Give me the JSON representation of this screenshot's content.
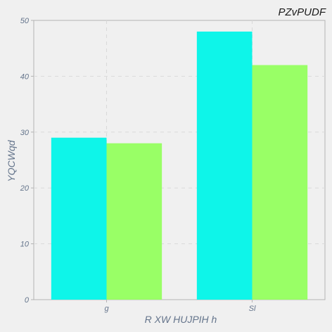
{
  "chart_data": {
    "type": "bar",
    "title": "PZvPUDF",
    "xlabel": "R XW HUJPIH h",
    "ylabel": "YQCWqd",
    "categories": [
      "g",
      "Sl"
    ],
    "series": [
      {
        "values": [
          29,
          48
        ],
        "color": "#0ef5e9"
      },
      {
        "values": [
          28,
          42
        ],
        "color": "#99ff66"
      }
    ],
    "ylim": [
      0,
      50
    ],
    "yticks": [
      0,
      10,
      20,
      30,
      40,
      50
    ],
    "grid": true
  }
}
